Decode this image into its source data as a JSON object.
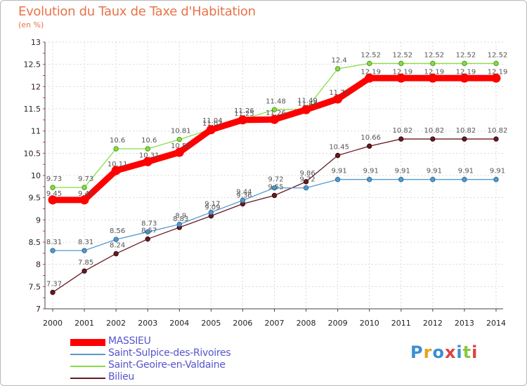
{
  "title": "Evolution du Taux de Taxe d'Habitation",
  "subtitle": "(en %)",
  "logo": {
    "text": "Proxiti",
    "colors": [
      "#3a8fd1",
      "#e8a020",
      "#3a8fd1",
      "#e04040",
      "#3a8fd1",
      "#8cc63f",
      "#e04040"
    ]
  },
  "chart_data": {
    "type": "line",
    "x": [
      "2000",
      "2001",
      "2002",
      "2003",
      "2004",
      "2005",
      "2006",
      "2007",
      "2008",
      "2009",
      "2010",
      "2011",
      "2012",
      "2013",
      "2014"
    ],
    "ylim": [
      7,
      13
    ],
    "yticks": [
      "7",
      "7.5",
      "8",
      "8.5",
      "9",
      "9.5",
      "10",
      "10.5",
      "11",
      "11.5",
      "12",
      "12.5",
      "13"
    ],
    "grid": true,
    "legend_position": "bottom-left",
    "series": [
      {
        "name": "MASSIEU",
        "color": "#ff0000",
        "values": [
          9.45,
          9.45,
          10.11,
          10.31,
          10.52,
          11.03,
          11.25,
          11.26,
          11.48,
          11.72,
          12.19,
          12.19,
          12.19,
          12.19,
          12.19
        ],
        "labels": [
          "9.45",
          "9.45",
          "10.11",
          "10.31",
          "10.52",
          "11.03",
          "11.25",
          "11.26",
          "11.48",
          "11.72",
          "12.19",
          "12.19",
          "12.19",
          "12.19",
          "12.19"
        ]
      },
      {
        "name": "Saint-Sulpice-des-Rivoires",
        "color": "#5599cc",
        "values": [
          8.31,
          8.31,
          8.56,
          8.73,
          8.9,
          9.17,
          9.44,
          9.72,
          9.72,
          9.91,
          9.91,
          9.91,
          9.91,
          9.91,
          9.91
        ],
        "labels": [
          "8.31",
          "8.31",
          "8.56",
          "8.73",
          "8.9",
          "9.17",
          "9.44",
          "9.72",
          "9.72",
          "9.91",
          "9.91",
          "9.91",
          "9.91",
          "9.91",
          "9.91"
        ]
      },
      {
        "name": "Saint-Geoire-en-Valdaine",
        "color": "#88dd44",
        "values": [
          9.73,
          9.73,
          10.6,
          10.6,
          10.81,
          11.04,
          11.26,
          11.48,
          11.49,
          12.4,
          12.52,
          12.52,
          12.52,
          12.52,
          12.52
        ],
        "labels": [
          "9.73",
          "9.73",
          "10.6",
          "10.6",
          "10.81",
          "11.04",
          "11.26",
          "11.48",
          "11.49",
          "12.4",
          "12.52",
          "12.52",
          "12.52",
          "12.52",
          "12.52"
        ]
      },
      {
        "name": "Bilieu",
        "color": "#661a22",
        "values": [
          7.37,
          7.85,
          8.24,
          8.57,
          8.83,
          9.09,
          9.36,
          9.55,
          9.86,
          10.45,
          10.66,
          10.82,
          10.82,
          10.82,
          10.82
        ],
        "labels": [
          "7.37",
          "7.85",
          "8.24",
          "8.57",
          "8.83",
          "9.09",
          "9.36",
          "9.55",
          "9.86",
          "10.45",
          "10.66",
          "10.82",
          "10.82",
          "10.82",
          "10.82"
        ]
      }
    ]
  }
}
